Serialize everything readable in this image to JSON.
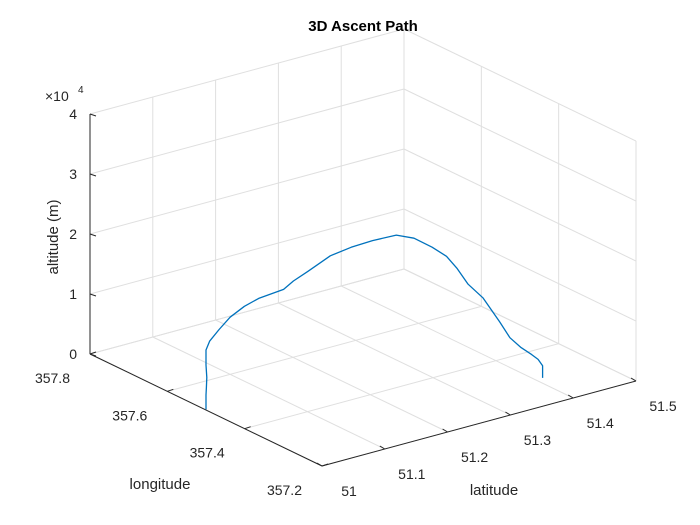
{
  "chart_data": {
    "type": "line",
    "projection": "3d",
    "title": "3D Ascent Path",
    "xlabel": "latitude",
    "ylabel": "longitude",
    "zlabel": "altitude (m)",
    "xlim": [
      51,
      51.5
    ],
    "ylim": [
      357.2,
      357.8
    ],
    "zlim": [
      0,
      40000
    ],
    "x_ticks": [
      "51",
      "51.1",
      "51.2",
      "51.3",
      "51.4",
      "51.5"
    ],
    "y_ticks": [
      "357.2",
      "357.4",
      "357.6",
      "357.8"
    ],
    "z_ticks": [
      "0",
      "1",
      "2",
      "3",
      "4"
    ],
    "z_exponent_label": "×10",
    "z_exponent_power": "4",
    "grid": true,
    "series": [
      {
        "color": "#0072bd",
        "x": [
          51.0,
          51.0,
          51.0,
          51.0,
          51.0,
          51.0,
          51.0,
          51.002,
          51.011,
          51.023,
          51.039,
          51.055,
          51.078,
          51.093,
          51.112,
          51.137,
          51.156,
          51.174,
          51.191,
          51.205,
          51.216,
          51.229,
          51.238,
          51.248,
          51.266,
          51.283,
          51.298,
          51.314,
          51.329,
          51.338,
          51.342,
          51.339
        ],
        "y": [
          357.5,
          357.5,
          357.5,
          357.499,
          357.498,
          357.5,
          357.5,
          357.494,
          357.484,
          357.475,
          357.464,
          357.453,
          357.426,
          357.425,
          357.418,
          357.401,
          357.378,
          357.352,
          357.318,
          357.295,
          357.266,
          357.25,
          357.237,
          357.225,
          357.216,
          357.2,
          357.198,
          357.195,
          357.192,
          357.19,
          357.185,
          357.18
        ],
        "z": [
          100,
          1200,
          2500,
          3800,
          5500,
          7500,
          10000,
          11600,
          13600,
          15600,
          17300,
          18500,
          20200,
          21200,
          22500,
          24900,
          26500,
          27900,
          29400,
          29200,
          28300,
          26900,
          25000,
          22500,
          20000,
          16000,
          13000,
          11000,
          9500,
          8500,
          7500,
          5700
        ]
      }
    ]
  }
}
